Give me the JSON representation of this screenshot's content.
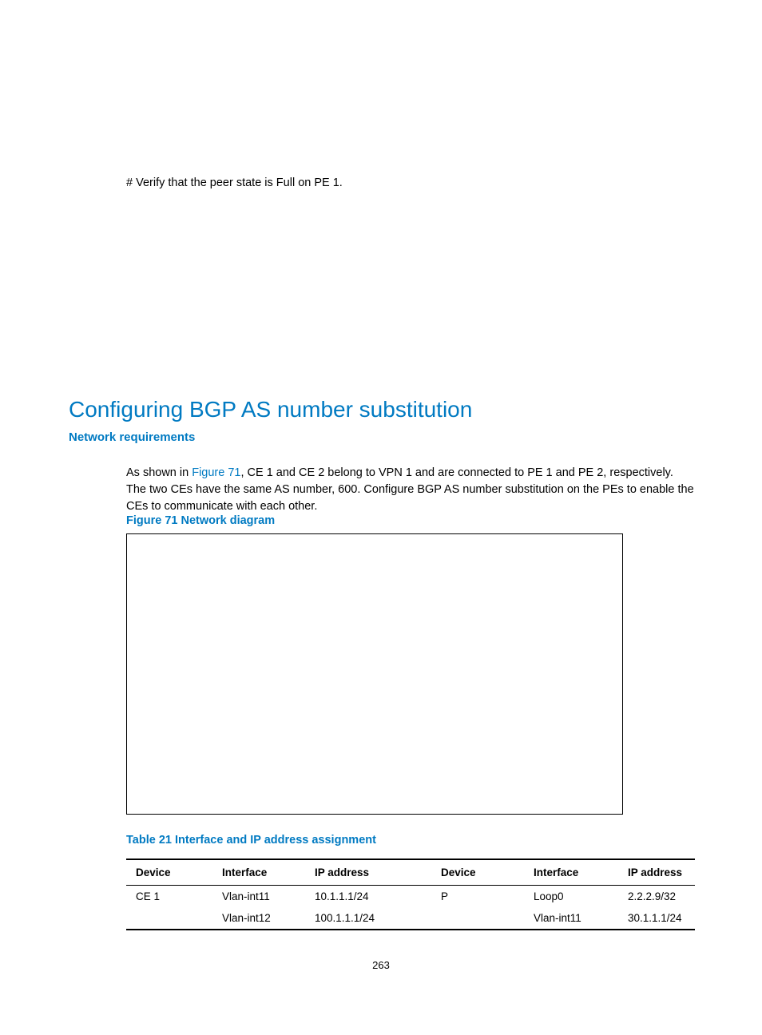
{
  "intro_line": "# Verify that the peer state is Full on PE 1.",
  "main_heading": "Configuring BGP AS number substitution",
  "sub_heading": "Network requirements",
  "para_pre": "As shown in ",
  "para_link": "Figure 71",
  "para_post": ", CE 1 and CE 2 belong to VPN 1 and are connected to PE 1 and PE 2, respectively. The two CEs have the same AS number, 600. Configure BGP AS number substitution on the PEs to enable the CEs to communicate with each other.",
  "figure_caption": "Figure 71 Network diagram",
  "table_caption": "Table 21 Interface and IP address assignment",
  "table": {
    "headers": [
      "Device",
      "Interface",
      "IP address",
      "Device",
      "Interface",
      "IP address"
    ],
    "rows": [
      [
        "CE 1",
        "Vlan-int11",
        "10.1.1.1/24",
        "P",
        "Loop0",
        "2.2.2.9/32"
      ],
      [
        "",
        "Vlan-int12",
        "100.1.1.1/24",
        "",
        "Vlan-int11",
        "30.1.1.1/24"
      ]
    ]
  },
  "page_number": "263",
  "colors": {
    "accent": "#007ac2",
    "text": "#000000",
    "background": "#ffffff"
  }
}
